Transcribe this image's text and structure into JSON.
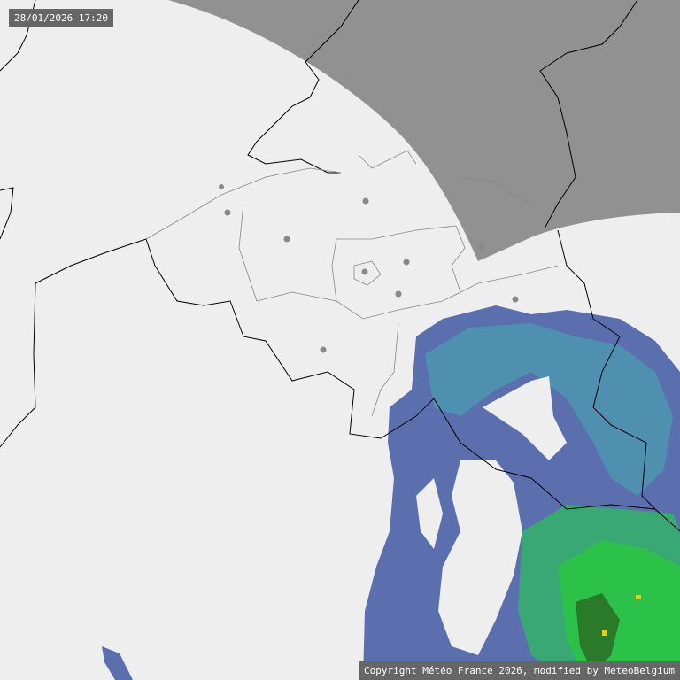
{
  "timestamp": "28/01/2026 17:20",
  "copyright": "Copyright Météo France 2026, modified by MeteoBelgium",
  "colors": {
    "background": "#eeeeee",
    "out_of_range": "#919191",
    "precip_light": "#5b6fae",
    "precip_light2": "#4f8fb0",
    "precip_moderate": "#3aa875",
    "precip_heavy": "#2cc24a",
    "precip_intense": "#e0d020",
    "border": "#000000",
    "province_border": "#888888",
    "city_dot": "#888888"
  }
}
